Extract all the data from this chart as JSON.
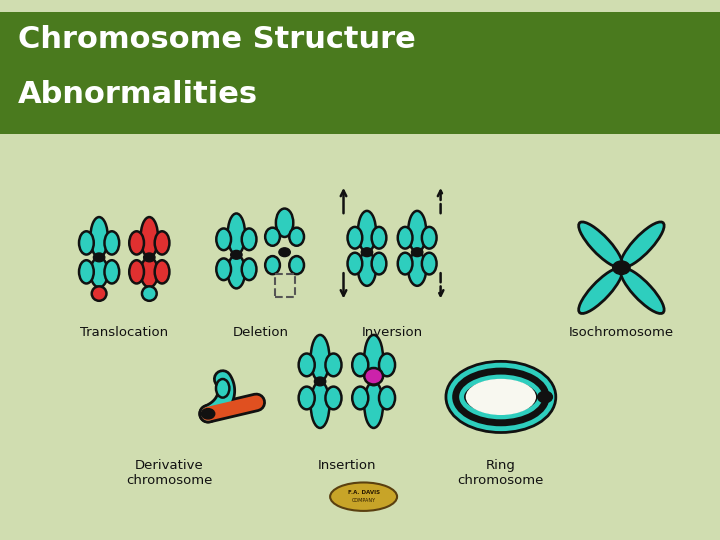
{
  "title_line1": "Chromosome Structure",
  "title_line2": "Abnormalities",
  "title_bg": "#4a7a1e",
  "title_bg_light": "#b8cc90",
  "title_color": "#ffffff",
  "panel_bg": "#f8f8f0",
  "outer_bg": "#d0ddb0",
  "labels": {
    "translocation": "Translocation",
    "deletion": "Deletion",
    "derivative": "Derivative\nchromosome",
    "inversion": "Inversion",
    "insertion": "Insertion",
    "ring": "Ring\nchromosome",
    "isochromosome": "Isochromosome"
  },
  "teal": "#2ecebe",
  "red": "#e03030",
  "orange": "#e05020",
  "magenta": "#cc22aa",
  "black": "#111111"
}
